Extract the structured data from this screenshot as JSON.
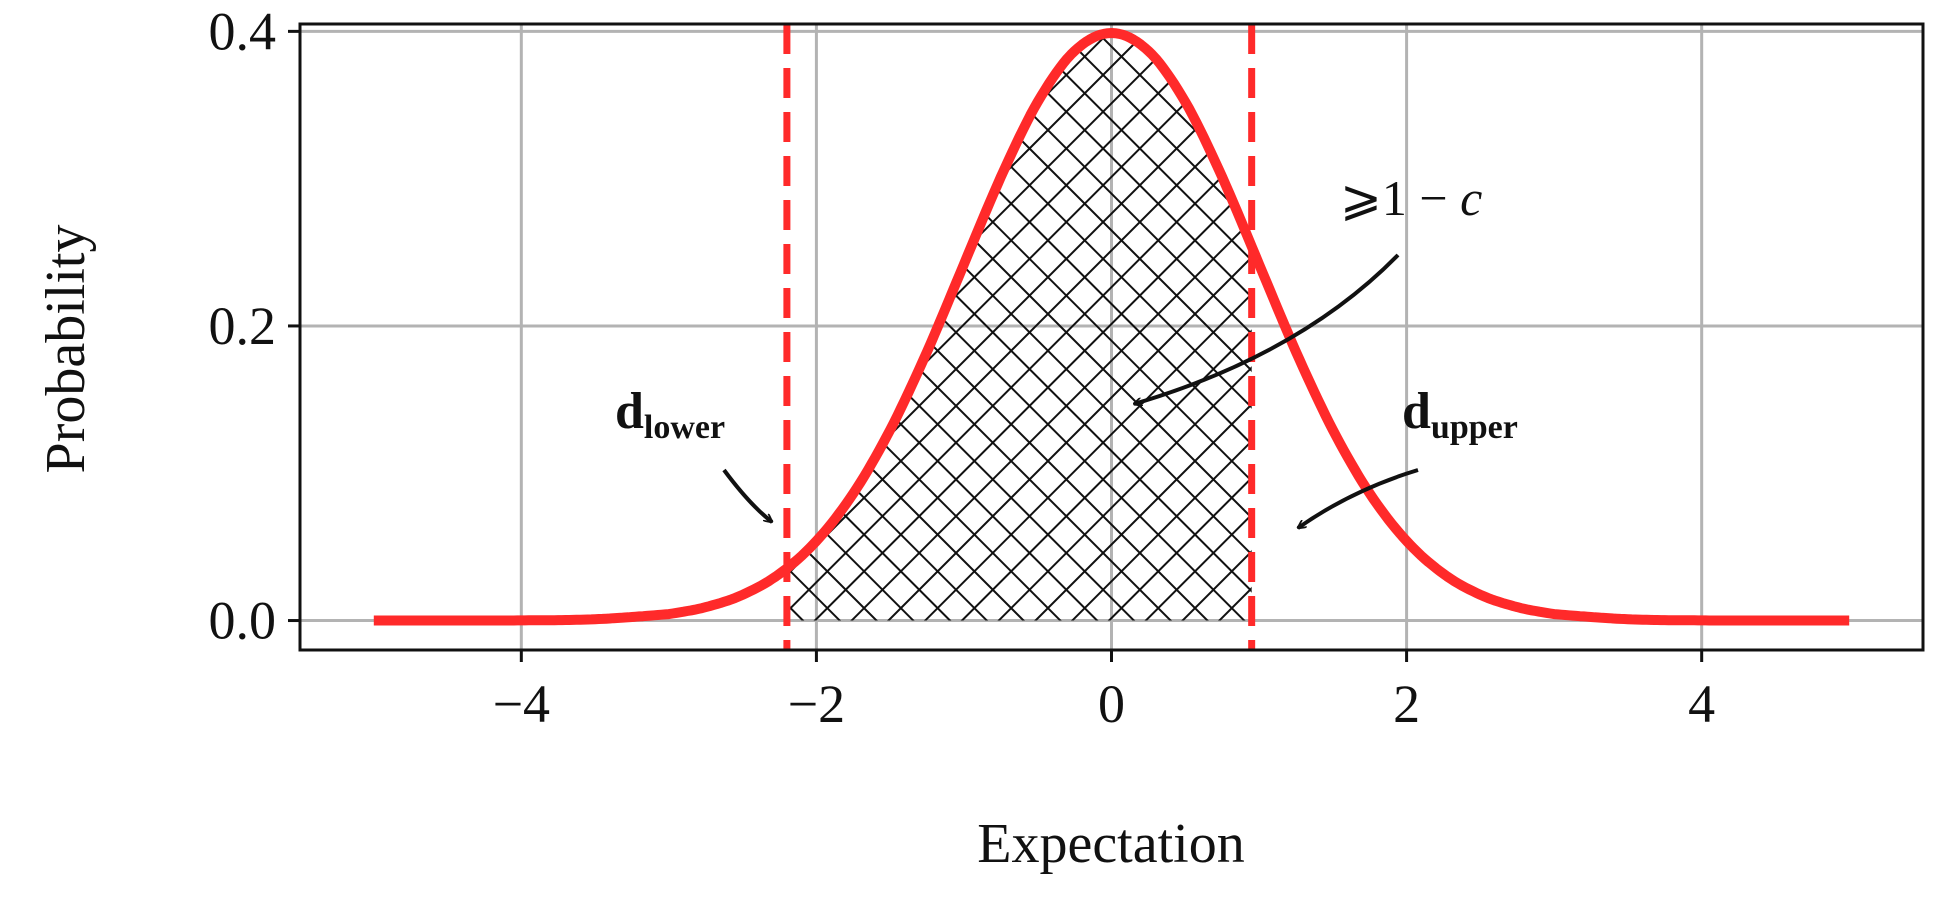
{
  "chart_data": {
    "type": "line",
    "xlabel": "Expectation",
    "ylabel": "Probability",
    "xlim": [
      -5.5,
      5.5
    ],
    "ylim": [
      -0.02,
      0.405
    ],
    "x_ticks": [
      -4,
      -2,
      0,
      2,
      4
    ],
    "x_tick_labels": [
      "−4",
      "−2",
      "0",
      "2",
      "4"
    ],
    "y_ticks": [
      0.0,
      0.2,
      0.4
    ],
    "y_tick_labels": [
      "0.0",
      "0.2",
      "0.4"
    ],
    "grid": true,
    "series": [
      {
        "color": "#ff2a2a",
        "x": [
          -5,
          -4.5,
          -4,
          -3.5,
          -3,
          -2.75,
          -2.5,
          -2.25,
          -2,
          -1.75,
          -1.5,
          -1.25,
          -1,
          -0.75,
          -0.5,
          -0.25,
          0,
          0.25,
          0.5,
          0.75,
          1,
          1.25,
          1.5,
          1.75,
          2,
          2.25,
          2.5,
          2.75,
          3,
          3.5,
          4,
          4.5,
          5
        ],
        "y": [
          0.0,
          0.0,
          0.0001,
          0.0009,
          0.0044,
          0.0091,
          0.0175,
          0.0317,
          0.054,
          0.0863,
          0.1295,
          0.1826,
          0.242,
          0.3011,
          0.3521,
          0.3867,
          0.3989,
          0.3867,
          0.3521,
          0.3011,
          0.242,
          0.1826,
          0.1295,
          0.0863,
          0.054,
          0.0317,
          0.0175,
          0.0091,
          0.0044,
          0.0009,
          0.0001,
          0.0,
          0.0
        ]
      }
    ],
    "vlines": [
      {
        "x": -2.2,
        "style": "dashed",
        "color": "#ff2a2a"
      },
      {
        "x": 0.95,
        "style": "dashed",
        "color": "#ff2a2a"
      }
    ],
    "shaded_region": {
      "x_from": -2.2,
      "x_to": 0.95,
      "pattern": "crosshatch"
    },
    "annotations": [
      {
        "id": "area",
        "text": "⩾1 − ",
        "italic_suffix": "c"
      },
      {
        "id": "lower",
        "base": "d",
        "subscript": "lower"
      },
      {
        "id": "upper",
        "base": "d",
        "subscript": "upper"
      }
    ]
  }
}
